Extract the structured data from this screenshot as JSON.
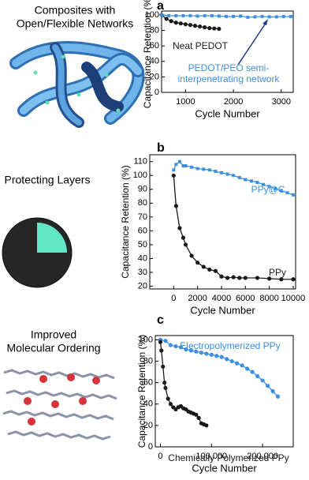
{
  "chart_data": [
    {
      "type": "line",
      "panel": "a",
      "heading": [
        "Composites with",
        "Open/Flexible Networks"
      ],
      "xlabel": "Cycle Number",
      "ylabel": "Capacitance Retention (%)",
      "xlim": [
        500,
        3250
      ],
      "xticks": [
        1000,
        2000,
        3000
      ],
      "ylim": [
        0,
        105
      ],
      "yticks": [
        0,
        20,
        40,
        60,
        80,
        100
      ],
      "series": [
        {
          "name": "Neat PEDOT",
          "color": "#1a1a1a",
          "marker": "circle",
          "x": [
            500,
            600,
            700,
            800,
            900,
            1000,
            1100,
            1200,
            1300,
            1400,
            1500,
            1600,
            1700
          ],
          "values": [
            100,
            95,
            92,
            90,
            89,
            88,
            87,
            86,
            85,
            84,
            83,
            82.5,
            82
          ]
        },
        {
          "name": "PEDOT/PEO semi-interpenetrating network",
          "color": "#3d8fe0",
          "marker": "square",
          "x": [
            500,
            650,
            800,
            950,
            1100,
            1250,
            1400,
            1550,
            1700,
            1850,
            2000,
            2150,
            2300,
            2450,
            2600,
            2750,
            2900,
            3050,
            3200
          ],
          "values": [
            100,
            99,
            99,
            99,
            99,
            98.5,
            99,
            99,
            98.5,
            98,
            98,
            98.5,
            97,
            97.5,
            98,
            97.5,
            97.5,
            98,
            98
          ]
        }
      ]
    },
    {
      "type": "line",
      "panel": "b",
      "heading": [
        "Protecting Layers"
      ],
      "xlabel": "Cycle Number",
      "ylabel": "Capacitance Retention (%)",
      "xlim": [
        -2000,
        10200
      ],
      "xticks": [
        0,
        2000,
        4000,
        6000,
        8000,
        10000
      ],
      "ylim": [
        18,
        115
      ],
      "yticks": [
        20,
        30,
        40,
        50,
        60,
        70,
        80,
        90,
        100,
        110
      ],
      "series": [
        {
          "name": "PPy@C",
          "color": "#3d8fe0",
          "marker": "square",
          "x": [
            0,
            200,
            500,
            800,
            1000,
            1500,
            2000,
            2500,
            3000,
            3500,
            4000,
            4500,
            5000,
            5500,
            6000,
            6500,
            7000,
            7500,
            8000,
            8500,
            9000,
            9500,
            10000
          ],
          "values": [
            104,
            108,
            110,
            107,
            107,
            106,
            105,
            104.5,
            104,
            103,
            102,
            101,
            100,
            98.5,
            97,
            96,
            95,
            93.5,
            92,
            90.5,
            89,
            87.5,
            86
          ]
        },
        {
          "name": "PPy",
          "color": "#1a1a1a",
          "marker": "circle",
          "x": [
            0,
            200,
            500,
            800,
            1000,
            1500,
            2000,
            2500,
            3000,
            3500,
            4000,
            4500,
            5000,
            5500,
            6000,
            7000,
            8000,
            9000,
            10000
          ],
          "values": [
            100,
            78,
            62,
            55,
            50,
            42,
            37,
            34,
            32,
            31,
            27,
            26,
            26.5,
            26,
            26,
            26,
            25.5,
            25,
            25
          ]
        }
      ]
    },
    {
      "type": "line",
      "panel": "c",
      "heading": [
        "Improved",
        "Molecular Ordering"
      ],
      "xlabel": "Cycle Number",
      "ylabel": "Capacitance Retention (%)",
      "xlim": [
        -10000,
        260000
      ],
      "xticks": [
        0,
        {
          "value": 100000,
          "label": "100,000"
        },
        {
          "value": 200000,
          "label": "200,000"
        }
      ],
      "ylim": [
        0,
        104
      ],
      "yticks": [
        0,
        20,
        40,
        60,
        80,
        100
      ],
      "series": [
        {
          "name": "Electropolymerized PPy",
          "color": "#3d8fe0",
          "marker": "circle",
          "x": [
            0,
            10000,
            20000,
            30000,
            40000,
            50000,
            60000,
            70000,
            80000,
            90000,
            100000,
            110000,
            120000,
            130000,
            140000,
            150000,
            160000,
            170000,
            180000,
            190000,
            200000,
            210000,
            220000,
            230000
          ],
          "values": [
            100,
            99,
            95,
            94,
            93,
            91,
            90,
            89,
            88,
            87,
            86,
            85,
            84,
            82,
            80,
            78,
            76,
            73,
            70,
            66,
            62,
            57,
            52,
            47
          ]
        },
        {
          "name": "Chemically Polymerized PPy",
          "color": "#1a1a1a",
          "marker": "circle",
          "x": [
            0,
            2000,
            5000,
            8000,
            10000,
            15000,
            20000,
            25000,
            30000,
            35000,
            40000,
            45000,
            50000,
            55000,
            60000,
            65000,
            70000,
            75000,
            80000,
            85000,
            90000
          ],
          "values": [
            98,
            90,
            75,
            60,
            55,
            45,
            40,
            37,
            35,
            37,
            38,
            36,
            35,
            33,
            32,
            31,
            30,
            27,
            22,
            21,
            20
          ]
        }
      ]
    }
  ]
}
